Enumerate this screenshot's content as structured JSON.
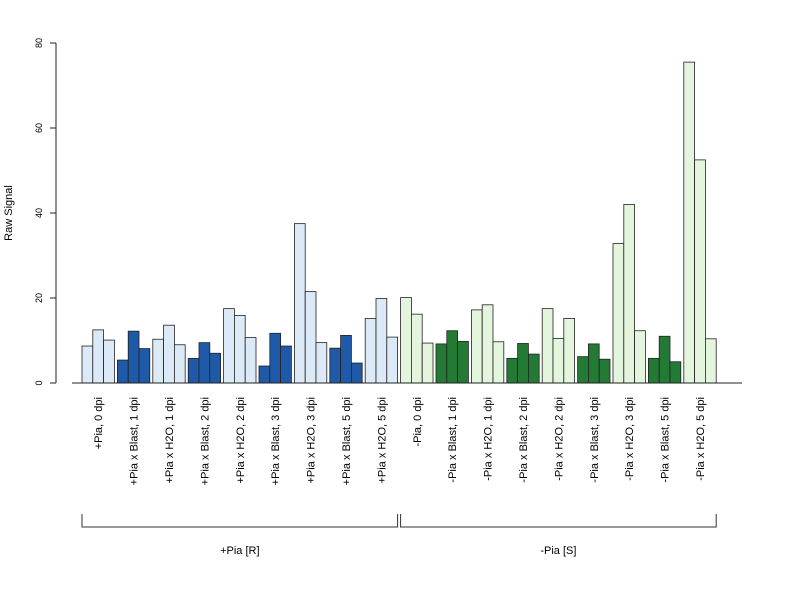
{
  "chart_data": {
    "type": "bar",
    "title": "",
    "xlabel": "",
    "ylabel": "Raw Signal",
    "ylim": [
      0,
      80
    ],
    "yticks": [
      0,
      20,
      40,
      60,
      80
    ],
    "grid": false,
    "legend": "none",
    "categories": [
      "+Pia, 0 dpi",
      "+Pia x Blast, 1 dpi",
      "+Pia x H2O, 1 dpi",
      "+Pia x Blast, 2 dpi",
      "+Pia x H2O, 2 dpi",
      "+Pia x Blast, 3 dpi",
      "+Pia x H2O, 3 dpi",
      "+Pia x Blast, 5 dpi",
      "+Pia x H2O, 5 dpi",
      "-Pia, 0 dpi",
      "-Pia x Blast, 1 dpi",
      "-Pia x H2O, 1 dpi",
      "-Pia x Blast, 2 dpi",
      "-Pia x H2O, 2 dpi",
      "-Pia x Blast, 3 dpi",
      "-Pia x H2O, 3 dpi",
      "-Pia x Blast, 5 dpi",
      "-Pia x H2O, 5 dpi"
    ],
    "values": [
      [
        8.7,
        12.5,
        10.1
      ],
      [
        5.4,
        12.2,
        8.1
      ],
      [
        10.3,
        13.6,
        9.0
      ],
      [
        5.8,
        9.5,
        7.0
      ],
      [
        17.5,
        15.9,
        10.7
      ],
      [
        4.0,
        11.7,
        8.7
      ],
      [
        37.5,
        21.5,
        9.5
      ],
      [
        8.2,
        11.2,
        4.7
      ],
      [
        15.2,
        19.9,
        10.8
      ],
      [
        20.1,
        16.2,
        9.4
      ],
      [
        9.2,
        12.3,
        9.8
      ],
      [
        17.2,
        18.4,
        9.7
      ],
      [
        5.8,
        9.3,
        6.8
      ],
      [
        17.5,
        10.5,
        15.2
      ],
      [
        6.2,
        9.2,
        5.6
      ],
      [
        32.8,
        42.0,
        12.3
      ],
      [
        5.8,
        11.0,
        5.0
      ],
      [
        75.5,
        52.5,
        10.4
      ]
    ],
    "fill_colors": [
      "#dce9f7",
      "#1f5aa8",
      "#dce9f7",
      "#1f5aa8",
      "#dce9f7",
      "#1f5aa8",
      "#dce9f7",
      "#1f5aa8",
      "#dce9f7",
      "#e3f5dd",
      "#237a35",
      "#e3f5dd",
      "#237a35",
      "#e3f5dd",
      "#237a35",
      "#e3f5dd",
      "#237a35",
      "#e3f5dd"
    ],
    "groups": [
      {
        "label": "+Pia [R]",
        "start": 0,
        "end": 8
      },
      {
        "label": "-Pia [S]",
        "start": 9,
        "end": 17
      }
    ]
  }
}
